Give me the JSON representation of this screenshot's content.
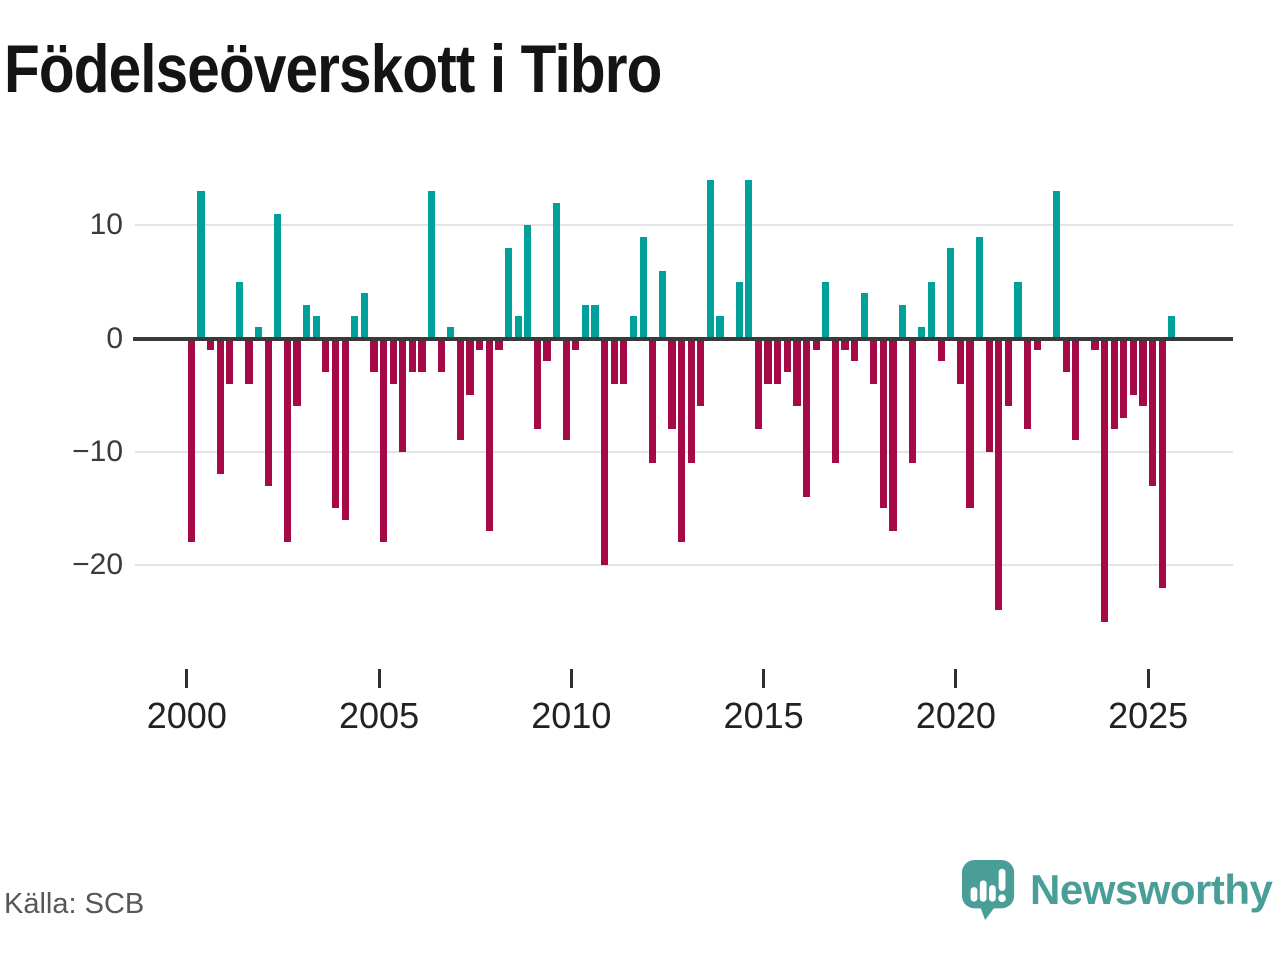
{
  "title": "Födelseöverskott i Tibro",
  "source": "Källa: SCB",
  "branding": {
    "name": "Newsworthy"
  },
  "colors": {
    "positive_bar": "#00a19a",
    "negative_bar": "#a50a46",
    "zero_line": "#3a3a3a",
    "gridline": "#e4e4e4",
    "logo": "#4a9e98",
    "title_text": "#141414",
    "axis_text": "#3b3b3b"
  },
  "chart_data": {
    "type": "bar",
    "title": "Födelseöverskott i Tibro",
    "xlabel": "",
    "ylabel": "",
    "frequency": "quarterly",
    "x_start": "2000-Q1",
    "x_end": "2025-Q3",
    "start_year": 2000,
    "ylim": [
      -28.5,
      15.5
    ],
    "grid": true,
    "legend": "none",
    "y_ticks": [
      10,
      0,
      -10,
      -20
    ],
    "y_tick_labels": [
      "10",
      "0",
      "−10",
      "−20"
    ],
    "x_tick_years": [
      2000,
      2005,
      2010,
      2015,
      2020,
      2025
    ],
    "x_tick_labels": [
      "2000",
      "2005",
      "2010",
      "2015",
      "2020",
      "2025"
    ],
    "values": [
      -18,
      13,
      -1,
      -12,
      -4,
      5,
      -4,
      1,
      -13,
      11,
      -18,
      -6,
      3,
      2,
      -3,
      -15,
      -16,
      2,
      4,
      -3,
      -18,
      -4,
      -10,
      -3,
      -3,
      13,
      -3,
      1,
      -9,
      -5,
      -1,
      -17,
      -1,
      8,
      2,
      10,
      -8,
      -2,
      12,
      -9,
      -1,
      3,
      3,
      -20,
      -4,
      -4,
      2,
      9,
      -11,
      6,
      -8,
      -18,
      -11,
      -6,
      14,
      2,
      0,
      5,
      14,
      -8,
      -4,
      -4,
      -3,
      -6,
      -14,
      -1,
      5,
      -11,
      -1,
      -2,
      4,
      -4,
      -15,
      -17,
      3,
      -11,
      1,
      5,
      -2,
      8,
      -4,
      -15,
      9,
      -10,
      -24,
      -6,
      5,
      -8,
      -1,
      0,
      13,
      -3,
      -9,
      0,
      -1,
      -25,
      -8,
      -7,
      -5,
      -6,
      -13,
      -22,
      2
    ]
  }
}
